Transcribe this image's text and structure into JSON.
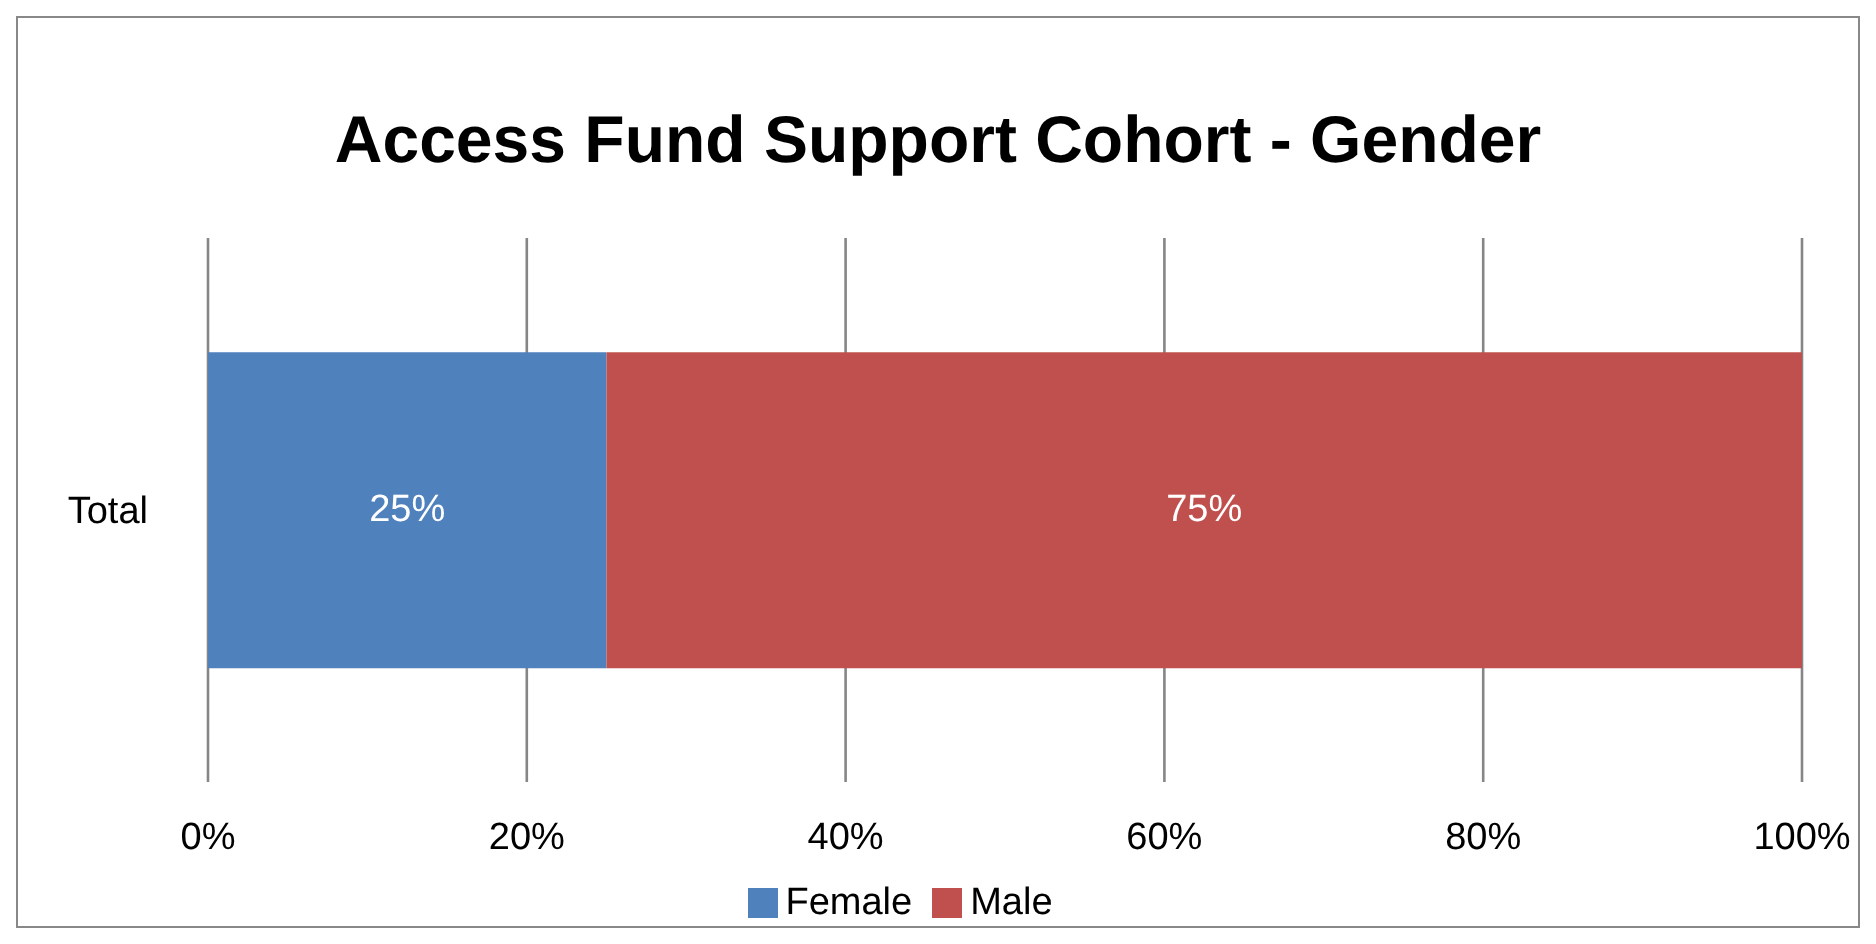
{
  "chart_data": {
    "type": "bar",
    "title": "Access Fund Support Cohort - Gender",
    "orientation": "horizontal",
    "stacked": true,
    "categories": [
      "Total"
    ],
    "series": [
      {
        "name": "Female",
        "color": "#4f81bd",
        "values": [
          25
        ],
        "value_labels": [
          "25%"
        ]
      },
      {
        "name": "Male",
        "color": "#c0504d",
        "values": [
          75
        ],
        "value_labels": [
          "75%"
        ]
      }
    ],
    "xlim": [
      0,
      100
    ],
    "xticks": [
      {
        "value": 0,
        "label": "0%"
      },
      {
        "value": 20,
        "label": "20%"
      },
      {
        "value": 40,
        "label": "40%"
      },
      {
        "value": 60,
        "label": "60%"
      },
      {
        "value": 80,
        "label": "80%"
      },
      {
        "value": 100,
        "label": "100%"
      }
    ],
    "grid": "x",
    "legend": "bottom"
  }
}
